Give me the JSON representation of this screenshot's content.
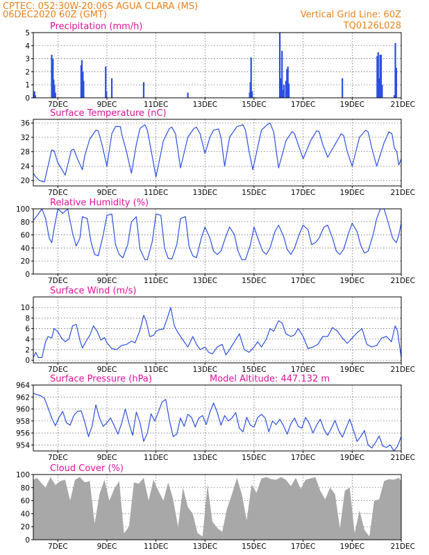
{
  "header": {
    "line1_left": "CPTEC:  052:30W-20:06S  AGUA CLARA (MS)",
    "line2_left": "06DEC2020 60Z (GMT)",
    "line1_right": "Vertical Grid Line: 60Z",
    "line2_right": "TQ0126L028"
  },
  "x_axis": {
    "start_day": 6,
    "end_day": 21,
    "tick_labels": [
      "7DEC",
      "9DEC",
      "11DEC",
      "13DEC",
      "15DEC",
      "17DEC",
      "19DEC",
      "21DEC"
    ],
    "tick_days": [
      7,
      9,
      11,
      13,
      15,
      17,
      19,
      21
    ]
  },
  "colors": {
    "series": "#2a4fe0",
    "cloud": "#a8a8a8",
    "title": "#e0109a",
    "header": "#e8801a"
  },
  "chart_data": [
    {
      "id": "precip",
      "type": "bar",
      "title": "Precipitation (mm/h)",
      "ylim": [
        0,
        5
      ],
      "yticks": [
        0,
        1,
        2,
        3,
        4,
        5
      ],
      "grid": true,
      "x": [
        6.02,
        6.05,
        6.08,
        6.75,
        6.78,
        6.8,
        6.83,
        6.86,
        6.9,
        7.95,
        7.98,
        8.02,
        8.05,
        8.95,
        8.98,
        9.2,
        10.5,
        12.3,
        14.82,
        14.85,
        14.88,
        14.92,
        16.05,
        16.08,
        16.11,
        16.14,
        16.18,
        16.22,
        16.3,
        16.34,
        16.38,
        16.42,
        18.6,
        20.02,
        20.06,
        20.1,
        20.14,
        20.18,
        20.22,
        20.72,
        20.76,
        20.8
      ],
      "values": [
        0.3,
        0.5,
        0.2,
        3.3,
        1.4,
        3.0,
        1.4,
        1.0,
        0.4,
        2.5,
        2.9,
        2.0,
        1.3,
        2.4,
        0.5,
        1.5,
        1.2,
        0.4,
        0.4,
        1.2,
        3.1,
        0.5,
        5.0,
        1.5,
        1.3,
        3.6,
        0.6,
        1.0,
        1.3,
        2.2,
        2.4,
        1.1,
        1.5,
        3.2,
        3.5,
        1.5,
        3.3,
        3.3,
        1.0,
        0.2,
        4.2,
        2.3
      ]
    },
    {
      "id": "temp",
      "type": "line",
      "title": "Surface Temperature (nC)",
      "ylim": [
        18.5,
        37
      ],
      "yticks": [
        20,
        24,
        28,
        32,
        36
      ],
      "grid": true,
      "x": [
        6.0,
        6.1,
        6.25,
        6.45,
        6.6,
        6.75,
        6.85,
        7.0,
        7.3,
        7.55,
        7.65,
        7.8,
        8.0,
        8.1,
        8.3,
        8.55,
        8.65,
        8.8,
        9.0,
        9.2,
        9.35,
        9.55,
        9.6,
        9.8,
        10.0,
        10.2,
        10.35,
        10.55,
        10.65,
        10.8,
        11.0,
        11.3,
        11.55,
        11.65,
        11.8,
        12.0,
        12.3,
        12.55,
        12.65,
        12.8,
        13.0,
        13.2,
        13.35,
        13.55,
        13.65,
        13.8,
        14.0,
        14.3,
        14.55,
        14.65,
        14.8,
        14.95,
        15.3,
        15.55,
        15.65,
        15.8,
        16.0,
        16.3,
        16.55,
        16.65,
        16.8,
        17.0,
        17.3,
        17.55,
        17.65,
        17.8,
        18.0,
        18.3,
        18.55,
        18.65,
        18.8,
        19.0,
        19.3,
        19.55,
        19.65,
        19.8,
        20.0,
        20.3,
        20.5,
        20.62,
        20.72,
        20.82,
        20.9,
        21.0
      ],
      "values": [
        22,
        21,
        20,
        19.6,
        24,
        28.5,
        28.2,
        25,
        21.5,
        28.4,
        28.7,
        26,
        23,
        27,
        31.5,
        34,
        33.8,
        30,
        24,
        33,
        35,
        35,
        33,
        28,
        22,
        30,
        34.5,
        35.5,
        34,
        28.5,
        21,
        31,
        34.5,
        34.8,
        33,
        23.5,
        32,
        34.5,
        34.8,
        33,
        27.5,
        32,
        34,
        34.3,
        32,
        24,
        32,
        35,
        35.5,
        34,
        28,
        23,
        34,
        35.6,
        36,
        33.5,
        23.5,
        31,
        33.6,
        33,
        30,
        26,
        31,
        33.8,
        33.6,
        30,
        26.5,
        30,
        33,
        32.5,
        28,
        24,
        32,
        34,
        33.5,
        29,
        24,
        30.5,
        33.5,
        33,
        29,
        28,
        24.3,
        26
      ]
    },
    {
      "id": "rh",
      "type": "line",
      "title": "Relative Humidity (%)",
      "ylim": [
        0,
        100
      ],
      "yticks": [
        0,
        20,
        40,
        60,
        80,
        100
      ],
      "grid": true,
      "x": [
        6.0,
        6.2,
        6.35,
        6.5,
        6.65,
        6.75,
        6.85,
        7.0,
        7.2,
        7.4,
        7.6,
        7.75,
        7.9,
        8.0,
        8.2,
        8.35,
        8.5,
        8.65,
        8.85,
        9.0,
        9.2,
        9.35,
        9.5,
        9.65,
        9.85,
        10.0,
        10.2,
        10.35,
        10.55,
        10.65,
        10.85,
        11.0,
        11.2,
        11.35,
        11.5,
        11.65,
        11.85,
        12.0,
        12.2,
        12.35,
        12.5,
        12.65,
        12.85,
        13.0,
        13.2,
        13.35,
        13.5,
        13.65,
        13.85,
        14.0,
        14.2,
        14.35,
        14.5,
        14.65,
        14.85,
        15.0,
        15.2,
        15.35,
        15.5,
        15.65,
        15.85,
        16.0,
        16.2,
        16.35,
        16.5,
        16.65,
        16.85,
        17.0,
        17.2,
        17.35,
        17.5,
        17.65,
        17.85,
        18.0,
        18.2,
        18.35,
        18.5,
        18.65,
        18.85,
        19.0,
        19.2,
        19.35,
        19.5,
        19.65,
        19.85,
        20.0,
        20.15,
        20.3,
        20.5,
        20.65,
        20.8,
        20.9,
        21.0
      ],
      "values": [
        82,
        92,
        100,
        85,
        55,
        48,
        70,
        100,
        93,
        100,
        63,
        43,
        55,
        88,
        85,
        50,
        30,
        28,
        60,
        90,
        92,
        45,
        30,
        25,
        45,
        80,
        88,
        38,
        22,
        22,
        50,
        92,
        90,
        40,
        24,
        23,
        45,
        85,
        88,
        42,
        28,
        25,
        55,
        72,
        55,
        35,
        30,
        35,
        58,
        72,
        60,
        35,
        22,
        22,
        45,
        72,
        50,
        35,
        30,
        40,
        65,
        75,
        58,
        38,
        30,
        40,
        62,
        75,
        68,
        45,
        48,
        55,
        72,
        75,
        55,
        35,
        30,
        38,
        62,
        78,
        65,
        44,
        32,
        35,
        60,
        85,
        100,
        100,
        75,
        55,
        48,
        60,
        78
      ]
    },
    {
      "id": "wind",
      "type": "line",
      "title": "Surface Wind (m/s)",
      "ylim": [
        -0.5,
        12
      ],
      "yticks": [
        0,
        2,
        4,
        6,
        8,
        10
      ],
      "grid": true,
      "x": [
        6.0,
        6.1,
        6.2,
        6.35,
        6.5,
        6.6,
        6.75,
        6.85,
        7.0,
        7.15,
        7.3,
        7.45,
        7.6,
        7.75,
        7.9,
        8.0,
        8.15,
        8.3,
        8.45,
        8.6,
        8.75,
        8.9,
        9.0,
        9.2,
        9.4,
        9.6,
        9.8,
        10.0,
        10.15,
        10.35,
        10.5,
        10.6,
        10.75,
        10.9,
        11.0,
        11.15,
        11.3,
        11.45,
        11.6,
        11.75,
        11.9,
        12.0,
        12.15,
        12.3,
        12.5,
        12.65,
        12.8,
        13.0,
        13.15,
        13.3,
        13.5,
        13.7,
        13.85,
        14.0,
        14.2,
        14.4,
        14.6,
        14.8,
        15.0,
        15.15,
        15.3,
        15.5,
        15.65,
        15.8,
        16.0,
        16.15,
        16.3,
        16.5,
        16.65,
        16.8,
        17.0,
        17.2,
        17.4,
        17.6,
        17.8,
        18.0,
        18.2,
        18.4,
        18.6,
        18.8,
        19.0,
        19.2,
        19.4,
        19.6,
        19.8,
        20.0,
        20.2,
        20.4,
        20.6,
        20.75,
        20.85,
        21.0
      ],
      "values": [
        0.5,
        1.5,
        0.5,
        0.5,
        3.5,
        4.5,
        4.2,
        6,
        5.4,
        4.2,
        3.5,
        4,
        6.5,
        6.8,
        3.8,
        2.3,
        3.6,
        4.7,
        6.5,
        5.5,
        3.8,
        4.3,
        3.3,
        2.2,
        2,
        2.8,
        3,
        3.6,
        3.3,
        5.7,
        8.5,
        7.5,
        4.5,
        4.7,
        5.5,
        5.8,
        5.9,
        7.8,
        10,
        6.5,
        5.2,
        4.5,
        3.5,
        2.5,
        4.5,
        3,
        2,
        2.5,
        1.5,
        1.2,
        2.5,
        3,
        1,
        2,
        3.5,
        5,
        2,
        1.5,
        2.5,
        3.5,
        2.5,
        4,
        6,
        5.5,
        7.5,
        7,
        5,
        4.5,
        4.8,
        6,
        4.5,
        2.2,
        2.5,
        3,
        4.5,
        4.5,
        6.2,
        5.5,
        4.2,
        3.2,
        4.2,
        5.2,
        6,
        3,
        2.5,
        2.8,
        4.2,
        4.5,
        3.5,
        6.5,
        5.5,
        0.5
      ]
    },
    {
      "id": "pressure",
      "type": "line",
      "title": "Surface Pressure (hPa)",
      "title_right": "Model Altitude: 447.132 m",
      "ylim": [
        953,
        964
      ],
      "yticks": [
        954,
        956,
        958,
        960,
        962,
        964
      ],
      "grid": true,
      "x": [
        6.0,
        6.15,
        6.3,
        6.45,
        6.6,
        6.75,
        6.9,
        7.05,
        7.2,
        7.35,
        7.5,
        7.65,
        7.8,
        7.95,
        8.1,
        8.25,
        8.4,
        8.55,
        8.7,
        8.85,
        9.0,
        9.15,
        9.3,
        9.45,
        9.6,
        9.75,
        9.9,
        10.05,
        10.2,
        10.35,
        10.5,
        10.65,
        10.8,
        10.95,
        11.1,
        11.25,
        11.4,
        11.55,
        11.7,
        11.85,
        12.0,
        12.15,
        12.3,
        12.45,
        12.6,
        12.75,
        12.9,
        13.05,
        13.2,
        13.35,
        13.5,
        13.65,
        13.8,
        13.95,
        14.1,
        14.25,
        14.4,
        14.55,
        14.7,
        14.85,
        15.0,
        15.15,
        15.3,
        15.45,
        15.6,
        15.75,
        15.9,
        16.05,
        16.2,
        16.35,
        16.5,
        16.65,
        16.8,
        16.95,
        17.1,
        17.25,
        17.4,
        17.55,
        17.7,
        17.85,
        18.0,
        18.15,
        18.3,
        18.45,
        18.6,
        18.75,
        18.9,
        19.05,
        19.2,
        19.35,
        19.5,
        19.65,
        19.8,
        19.95,
        20.1,
        20.25,
        20.4,
        20.55,
        20.7,
        20.85,
        21.0
      ],
      "values": [
        962.6,
        962.4,
        962.2,
        961.8,
        960.2,
        958.5,
        957.2,
        958.6,
        959.6,
        957.7,
        957.3,
        958.9,
        959.6,
        959.7,
        957.8,
        955.4,
        957.2,
        960.7,
        958.5,
        957.1,
        957.7,
        958.5,
        957.2,
        955.8,
        957.6,
        960.0,
        957.6,
        955.6,
        959.5,
        957.7,
        954.6,
        956.0,
        959.2,
        958.0,
        959.5,
        961.2,
        961.6,
        958.1,
        955.4,
        955.8,
        958.5,
        957.1,
        959.1,
        958.6,
        957.0,
        958.5,
        958.9,
        957.4,
        959.5,
        961.0,
        959.4,
        957.3,
        958.9,
        958.0,
        958.5,
        959.4,
        956.8,
        956.2,
        958.6,
        957.3,
        957.0,
        958.6,
        959.1,
        958.5,
        956.2,
        958.0,
        957.4,
        958.3,
        957.2,
        955.8,
        957.5,
        958.5,
        957.1,
        956.8,
        958.6,
        957.6,
        956.0,
        957.3,
        958.3,
        956.6,
        955.6,
        956.8,
        958.1,
        956.4,
        955.3,
        956.8,
        958.3,
        956.5,
        954.6,
        955.4,
        956.4,
        954.0,
        953.5,
        954.4,
        955.5,
        953.8,
        953.6,
        954.0,
        953.0,
        953.8,
        955.4
      ]
    },
    {
      "id": "cloud",
      "type": "area",
      "title": "Cloud Cover (%)",
      "ylim": [
        0,
        100
      ],
      "yticks": [
        0,
        20,
        40,
        60,
        80,
        100
      ],
      "grid": true,
      "x": [
        6.0,
        6.15,
        6.3,
        6.5,
        6.7,
        6.9,
        7.1,
        7.3,
        7.5,
        7.7,
        7.9,
        8.1,
        8.3,
        8.5,
        8.7,
        8.9,
        9.1,
        9.3,
        9.5,
        9.7,
        9.9,
        10.1,
        10.3,
        10.5,
        10.7,
        10.9,
        11.1,
        11.3,
        11.5,
        11.7,
        11.9,
        12.1,
        12.3,
        12.5,
        12.7,
        12.9,
        13.1,
        13.3,
        13.5,
        13.7,
        13.9,
        14.1,
        14.3,
        14.5,
        14.7,
        14.9,
        15.1,
        15.3,
        15.5,
        15.7,
        15.9,
        16.1,
        16.3,
        16.5,
        16.7,
        16.9,
        17.1,
        17.3,
        17.5,
        17.7,
        17.9,
        18.1,
        18.3,
        18.5,
        18.7,
        18.9,
        19.1,
        19.3,
        19.5,
        19.7,
        19.9,
        20.1,
        20.3,
        20.5,
        20.7,
        20.9,
        21.0
      ],
      "values": [
        92,
        95,
        88,
        80,
        96,
        84,
        90,
        92,
        60,
        92,
        96,
        88,
        90,
        25,
        70,
        92,
        60,
        78,
        90,
        10,
        20,
        88,
        86,
        95,
        60,
        92,
        75,
        60,
        88,
        62,
        20,
        80,
        50,
        40,
        10,
        5,
        85,
        28,
        18,
        12,
        48,
        70,
        95,
        70,
        30,
        85,
        72,
        94,
        96,
        93,
        92,
        96,
        92,
        82,
        95,
        78,
        92,
        94,
        96,
        75,
        62,
        80,
        70,
        18,
        75,
        80,
        10,
        45,
        15,
        5,
        60,
        62,
        90,
        93,
        92,
        95,
        90
      ]
    }
  ]
}
